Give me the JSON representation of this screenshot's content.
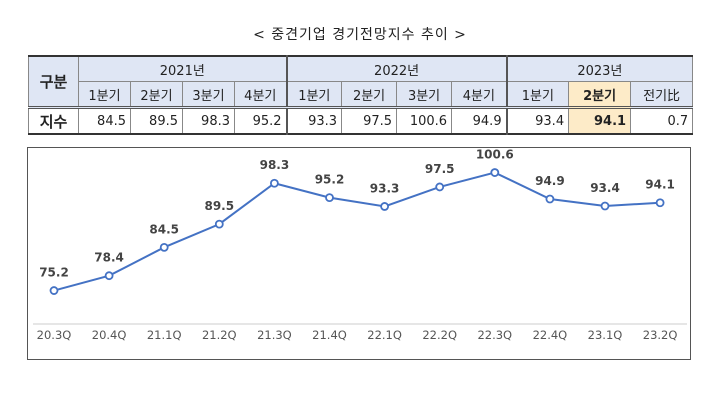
{
  "title": "< 중견기업 경기전망지수 추이 >",
  "table": {
    "corner": "구분",
    "years": [
      "2021년",
      "2022년",
      "2023년"
    ],
    "quarters": [
      "1분기",
      "2분기",
      "3분기",
      "4분기",
      "1분기",
      "2분기",
      "3분기",
      "4분기",
      "1분기",
      "2분기",
      "전기比"
    ],
    "row_label": "지수",
    "values": [
      "84.5",
      "89.5",
      "98.3",
      "95.2",
      "93.3",
      "97.5",
      "100.6",
      "94.9",
      "93.4",
      "94.1",
      "0.7"
    ],
    "highlight_color": "#fdebc8"
  },
  "chart_data": {
    "type": "line",
    "categories": [
      "20.3Q",
      "20.4Q",
      "21.1Q",
      "21.2Q",
      "21.3Q",
      "21.4Q",
      "22.1Q",
      "22.2Q",
      "22.3Q",
      "22.4Q",
      "23.1Q",
      "23.2Q"
    ],
    "values": [
      75.2,
      78.4,
      84.5,
      89.5,
      98.3,
      95.2,
      93.3,
      97.5,
      100.6,
      94.9,
      93.4,
      94.1
    ],
    "labels": [
      "75.2",
      "78.4",
      "84.5",
      "89.5",
      "98.3",
      "95.2",
      "93.3",
      "97.5",
      "100.6",
      "94.9",
      "93.4",
      "94.1"
    ],
    "ylim": [
      68,
      105
    ],
    "line_color": "#4472c4",
    "grid": false,
    "title": "",
    "xlabel": "",
    "ylabel": ""
  }
}
